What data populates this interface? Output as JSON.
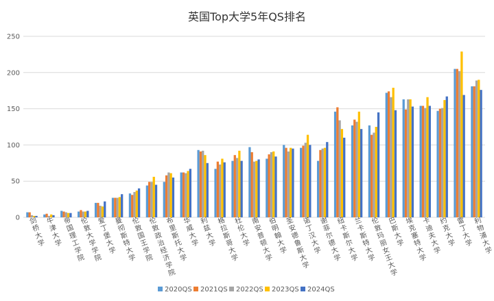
{
  "chart_data": {
    "type": "bar",
    "title": "英国Top大学5年QS排名",
    "xlabel": "",
    "ylabel": "",
    "ylim": [
      0,
      250
    ],
    "yticks": [
      0,
      50,
      100,
      150,
      200,
      250
    ],
    "grid": true,
    "legend_position": "bottom",
    "categories": [
      "剑桥大学",
      "牛津大学",
      "帝国理工学院",
      "伦敦大学学院",
      "爱丁堡大学",
      "曼彻斯特大学",
      "伦敦国王学院",
      "伦敦政治经济学院",
      "布里斯托大学",
      "华威大学",
      "利兹大学",
      "格拉斯哥大学",
      "杜伦大学",
      "南安普顿大学",
      "伯明翰大学",
      "圣安德鲁斯大学",
      "诺丁汉大学",
      "谢菲尔德大学",
      "纽卡斯尔大学",
      "兰卡斯特大学",
      "伦敦玛丽女王大学",
      "巴斯大学",
      "埃克塞特大学",
      "卡迪夫大学",
      "约克大学",
      "雷丁大学",
      "利物浦大学"
    ],
    "series": [
      {
        "name": "2020QS",
        "color": "#5b9bd5",
        "values": [
          7,
          4,
          9,
          8,
          20,
          27,
          33,
          44,
          49,
          62,
          93,
          67,
          78,
          97,
          81,
          100,
          96,
          78,
          146,
          127,
          127,
          172,
          163,
          154,
          147,
          205,
          181
        ]
      },
      {
        "name": "2021QS",
        "color": "#ed7d31",
        "values": [
          7,
          5,
          8,
          10,
          20,
          27,
          31,
          49,
          58,
          62,
          91,
          77,
          86,
          90,
          87,
          96,
          99,
          93,
          152,
          135,
          114,
          174,
          149,
          154,
          150,
          205,
          181
        ]
      },
      {
        "name": "2022QS",
        "color": "#a5a5a5",
        "values": [
          3,
          2,
          7,
          8,
          16,
          27,
          35,
          49,
          62,
          61,
          92,
          73,
          82,
          77,
          90,
          91,
          103,
          95,
          134,
          132,
          117,
          166,
          163,
          151,
          151,
          202,
          189
        ]
      },
      {
        "name": "2023QS",
        "color": "#ffc000",
        "values": [
          2,
          4,
          6,
          8,
          15,
          28,
          37,
          56,
          61,
          64,
          86,
          81,
          92,
          78,
          91,
          96,
          114,
          96,
          122,
          146,
          125,
          179,
          163,
          166,
          162,
          229,
          190
        ]
      },
      {
        "name": "2024QS",
        "color": "#4472c4",
        "values": [
          2,
          3,
          6,
          9,
          22,
          32,
          40,
          45,
          55,
          67,
          75,
          76,
          78,
          80,
          84,
          95,
          100,
          104,
          110,
          122,
          145,
          148,
          153,
          154,
          167,
          169,
          176
        ]
      }
    ]
  }
}
